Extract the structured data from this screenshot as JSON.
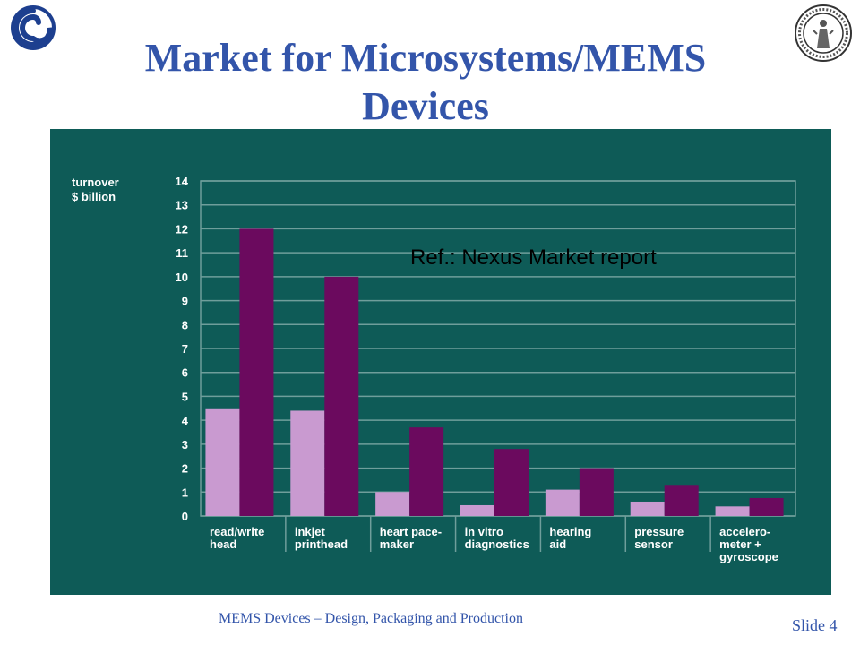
{
  "slide": {
    "title_line1": "Market for Microsystems/MEMS",
    "title_line2": "Devices",
    "footer": "MEMS Devices – Design, Packaging and Production",
    "slide_number": "Slide 4",
    "left_logo_icon": "swirl-logo-icon",
    "right_logo_icon": "university-seal-icon"
  },
  "colors": {
    "title": "#3355aa",
    "chart_bg": "#0e5b57",
    "series_light": "#c99ad0",
    "series_dark": "#6b0a5e",
    "grid": "#6f9e9b"
  },
  "annotation": "Ref.: Nexus Market report",
  "chart_data": {
    "type": "bar",
    "ylabel_line1": "turnover",
    "ylabel_line2": "$ billion",
    "xlabel": "",
    "ylim": [
      0,
      14
    ],
    "yticks": [
      0,
      1,
      2,
      3,
      4,
      5,
      6,
      7,
      8,
      9,
      10,
      11,
      12,
      13,
      14
    ],
    "grid": true,
    "categories": [
      [
        "read/write",
        "head"
      ],
      [
        "inkjet",
        "printhead"
      ],
      [
        "heart pace-",
        "maker"
      ],
      [
        "in vitro",
        "diagnostics"
      ],
      [
        "hearing",
        "aid"
      ],
      [
        "pressure",
        "sensor"
      ],
      [
        "accelero-",
        "meter +",
        "gyroscope"
      ]
    ],
    "series": [
      {
        "values": [
          4.5,
          4.4,
          1.0,
          0.45,
          1.1,
          0.6,
          0.4
        ]
      },
      {
        "values": [
          12.0,
          10.0,
          3.7,
          2.8,
          2.0,
          1.3,
          0.75
        ]
      }
    ]
  }
}
